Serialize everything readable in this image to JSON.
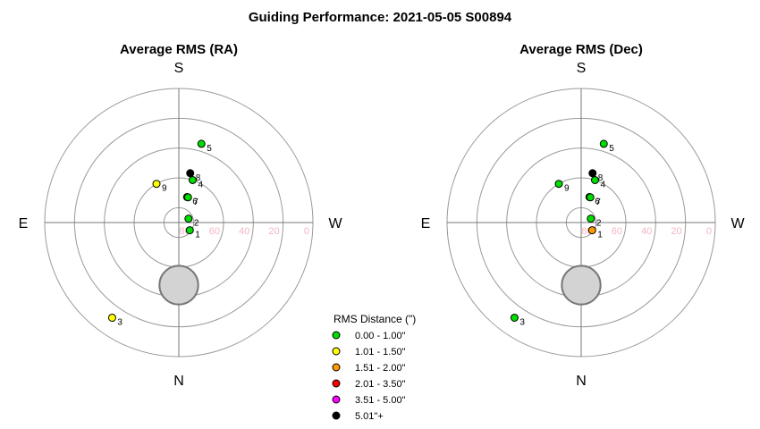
{
  "title": "Guiding Performance: 2021-05-05 S00894",
  "compass": {
    "top": "S",
    "bottom": "N",
    "left": "E",
    "right": "W"
  },
  "ring_tick_labels": [
    "80",
    "60",
    "40",
    "20",
    "0"
  ],
  "colors": {
    "ring": "#9a9a9a",
    "axis": "#777777",
    "tick_label": "#f4b6c2",
    "blocked_fill": "#d3d3d3",
    "blocked_stroke": "#777777"
  },
  "legend": {
    "title": "RMS Distance (\")",
    "items": [
      {
        "label": "0.00 - 1.00\"",
        "color": "#00dd00"
      },
      {
        "label": "1.01 - 1.50\"",
        "color": "#ffff00"
      },
      {
        "label": "1.51 - 2.00\"",
        "color": "#ff9900"
      },
      {
        "label": "2.01 - 3.50\"",
        "color": "#ff0000"
      },
      {
        "label": "3.51 - 5.00\"",
        "color": "#ff00ff"
      },
      {
        "label": "5.01\"+",
        "color": "#000000"
      }
    ]
  },
  "chart_data": [
    {
      "type": "scatter",
      "subtitle": "Average RMS (RA)",
      "coordinate_system": "polar alt-az (radius = 90 - altitude, deg)",
      "rings_altitude": [
        80,
        60,
        40,
        20,
        0
      ],
      "blocked_region": {
        "azimuth_deg": 0,
        "altitude_deg": 48,
        "radius_deg": 13
      },
      "points": [
        {
          "label": "1",
          "azimuth_deg": 305,
          "altitude_deg": 81,
          "rms_class": "0.00 - 1.00\""
        },
        {
          "label": "2",
          "azimuth_deg": 248,
          "altitude_deg": 83,
          "rms_class": "0.00 - 1.00\""
        },
        {
          "label": "3",
          "azimuth_deg": 35,
          "altitude_deg": 12,
          "rms_class": "1.01 - 1.50\""
        },
        {
          "label": "4",
          "azimuth_deg": 198,
          "altitude_deg": 60,
          "rms_class": "0.00 - 1.00\""
        },
        {
          "label": "5",
          "azimuth_deg": 196,
          "altitude_deg": 35,
          "rms_class": "0.00 - 1.00\""
        },
        {
          "label": "6",
          "azimuth_deg": 198,
          "altitude_deg": 72,
          "rms_class": "0.00 - 1.00\""
        },
        {
          "label": "7",
          "azimuth_deg": 200,
          "altitude_deg": 72,
          "rms_class": "0.00 - 1.00\""
        },
        {
          "label": "8",
          "azimuth_deg": 193,
          "altitude_deg": 56,
          "rms_class": "5.01\"+"
        },
        {
          "label": "9",
          "azimuth_deg": 150,
          "altitude_deg": 60,
          "rms_class": "1.01 - 1.50\""
        }
      ]
    },
    {
      "type": "scatter",
      "subtitle": "Average RMS (Dec)",
      "coordinate_system": "polar alt-az (radius = 90 - altitude, deg)",
      "rings_altitude": [
        80,
        60,
        40,
        20,
        0
      ],
      "blocked_region": {
        "azimuth_deg": 0,
        "altitude_deg": 48,
        "radius_deg": 13
      },
      "points": [
        {
          "label": "1",
          "azimuth_deg": 305,
          "altitude_deg": 81,
          "rms_class": "1.51 - 2.00\""
        },
        {
          "label": "2",
          "azimuth_deg": 248,
          "altitude_deg": 83,
          "rms_class": "0.00 - 1.00\""
        },
        {
          "label": "3",
          "azimuth_deg": 35,
          "altitude_deg": 12,
          "rms_class": "0.00 - 1.00\""
        },
        {
          "label": "4",
          "azimuth_deg": 198,
          "altitude_deg": 60,
          "rms_class": "0.00 - 1.00\""
        },
        {
          "label": "5",
          "azimuth_deg": 196,
          "altitude_deg": 35,
          "rms_class": "0.00 - 1.00\""
        },
        {
          "label": "6",
          "azimuth_deg": 198,
          "altitude_deg": 72,
          "rms_class": "0.00 - 1.00\""
        },
        {
          "label": "7",
          "azimuth_deg": 200,
          "altitude_deg": 72,
          "rms_class": "0.00 - 1.00\""
        },
        {
          "label": "8",
          "azimuth_deg": 193,
          "altitude_deg": 56,
          "rms_class": "5.01\"+"
        },
        {
          "label": "9",
          "azimuth_deg": 150,
          "altitude_deg": 60,
          "rms_class": "0.00 - 1.00\""
        }
      ]
    }
  ]
}
